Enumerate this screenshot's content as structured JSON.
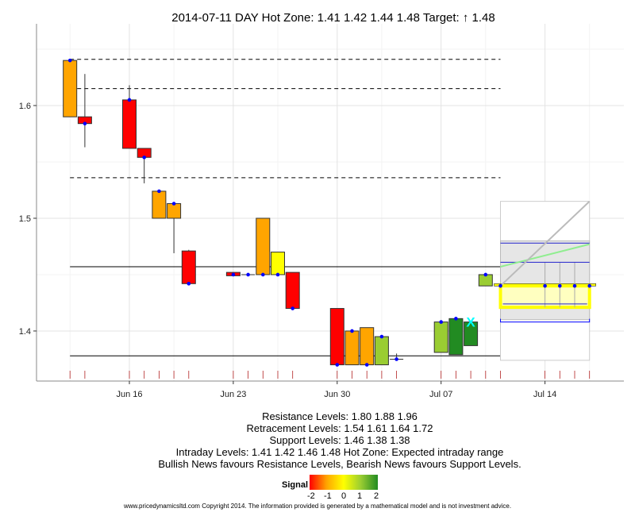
{
  "chart_data": {
    "type": "candlestick",
    "title": "2014-07-11 DAY   Hot Zone: 1.41 1.42 1.44 1.48 Target: ↑ 1.48",
    "xlabel": "",
    "ylabel": "",
    "ylim": [
      1.3556,
      1.6725
    ],
    "x_ticks": [
      "Jun 16",
      "Jun 23",
      "Jun 30",
      "Jul 07",
      "Jul 14"
    ],
    "y_ticks": [
      "1.4",
      "1.5",
      "1.6"
    ],
    "grid": true,
    "candles": [
      {
        "date": "2014-06-12",
        "top": 1.64,
        "bottom": 1.59,
        "color": "#ffa500",
        "marker": 1.64
      },
      {
        "date": "2014-06-13",
        "top": 1.59,
        "bottom": 1.584,
        "high": 1.628,
        "low": 1.563,
        "color": "#ff0000",
        "marker": 1.584
      },
      {
        "date": "2014-06-16",
        "top": 1.605,
        "bottom": 1.562,
        "high": 1.618,
        "color": "#ff0000",
        "marker": 1.605
      },
      {
        "date": "2014-06-17",
        "top": 1.562,
        "bottom": 1.554,
        "low": 1.531,
        "color": "#ff0000",
        "marker": 1.554
      },
      {
        "date": "2014-06-18",
        "top": 1.524,
        "bottom": 1.5,
        "color": "#ffa500",
        "marker": 1.524
      },
      {
        "date": "2014-06-19",
        "top": 1.513,
        "bottom": 1.5,
        "low": 1.469,
        "color": "#ffa500",
        "marker": 1.513
      },
      {
        "date": "2014-06-20",
        "top": 1.471,
        "bottom": 1.442,
        "high": 1.472,
        "color": "#ff0000",
        "marker": 1.442
      },
      {
        "date": "2014-06-23",
        "top": 1.452,
        "bottom": 1.449,
        "color": "#ff0000",
        "marker": 1.45
      },
      {
        "date": "2014-06-24",
        "top": 1.45,
        "bottom": 1.45,
        "color": "#ffa500",
        "marker": 1.45
      },
      {
        "date": "2014-06-25",
        "top": 1.5,
        "bottom": 1.45,
        "color": "#ffa500",
        "marker": 1.45
      },
      {
        "date": "2014-06-26",
        "top": 1.47,
        "bottom": 1.45,
        "color": "#ffff00",
        "marker": 1.45
      },
      {
        "date": "2014-06-27",
        "top": 1.452,
        "bottom": 1.42,
        "color": "#ff0000",
        "marker": 1.42
      },
      {
        "date": "2014-06-30",
        "top": 1.42,
        "bottom": 1.37,
        "color": "#ff0000",
        "marker": 1.37
      },
      {
        "date": "2014-07-01",
        "top": 1.4,
        "bottom": 1.37,
        "color": "#ffa500",
        "marker": 1.4
      },
      {
        "date": "2014-07-02",
        "top": 1.403,
        "bottom": 1.37,
        "color": "#ffa500",
        "marker": 1.37
      },
      {
        "date": "2014-07-03",
        "top": 1.395,
        "bottom": 1.37,
        "color": "#9acd32",
        "marker": 1.395
      },
      {
        "date": "2014-07-04",
        "top": 1.375,
        "bottom": 1.375,
        "high": 1.38,
        "color": "#9acd32",
        "marker": 1.375
      },
      {
        "date": "2014-07-07",
        "top": 1.408,
        "bottom": 1.381,
        "color": "#9acd32",
        "marker": 1.408
      },
      {
        "date": "2014-07-08",
        "top": 1.411,
        "bottom": 1.379,
        "color": "#228b22",
        "marker": 1.411
      },
      {
        "date": "2014-07-09",
        "top": 1.408,
        "bottom": 1.387,
        "color": "#228b22",
        "cross": 1.408
      },
      {
        "date": "2014-07-10",
        "top": 1.45,
        "bottom": 1.44,
        "color": "#9acd32",
        "marker": 1.45
      }
    ],
    "dashed_levels": [
      1.641,
      1.615,
      1.536
    ],
    "solid_levels": [
      1.457,
      1.378
    ],
    "forecast": {
      "start": "2014-07-11",
      "end": "2014-07-17",
      "range": [
        1.374,
        1.515
      ],
      "shaded": [
        1.41,
        1.48
      ],
      "hot_zone": [
        1.421,
        1.44
      ],
      "blue_levels": [
        1.478,
        1.461,
        1.424
      ],
      "bracket": 1.408,
      "trend_gray": [
        1.44,
        1.515
      ],
      "trend_green": [
        1.457,
        1.477
      ],
      "markers": [
        1.44,
        1.44,
        1.44,
        1.44,
        1.44
      ],
      "marker_dates": [
        "2014-07-11",
        "2014-07-14",
        "2014-07-15",
        "2014-07-16",
        "2014-07-17"
      ]
    },
    "colors": {
      "marker": "#0000ff",
      "cross": "#00ffff",
      "hot_zone": "#ffff00",
      "rug": "#b22222"
    }
  },
  "info": {
    "resistance": "Resistance Levels: 1.80 1.88 1.96",
    "retracement": "Retracement Levels: 1.54 1.61 1.64 1.72",
    "support": "Support Levels: 1.46 1.38 1.38",
    "intraday": "Intraday Levels: 1.41 1.42 1.46 1.48    Hot Zone: Expected intraday range",
    "news": "Bullish News favours Resistance Levels, Bearish News favours Support Levels."
  },
  "legend": {
    "title": "Signal",
    "labels": [
      "-2",
      "-1",
      "0",
      "1",
      "2"
    ]
  },
  "footer": "www.pricedynamicsltd.com Copyright 2014. The information provided is generated by a mathematical model and is not investment advice."
}
